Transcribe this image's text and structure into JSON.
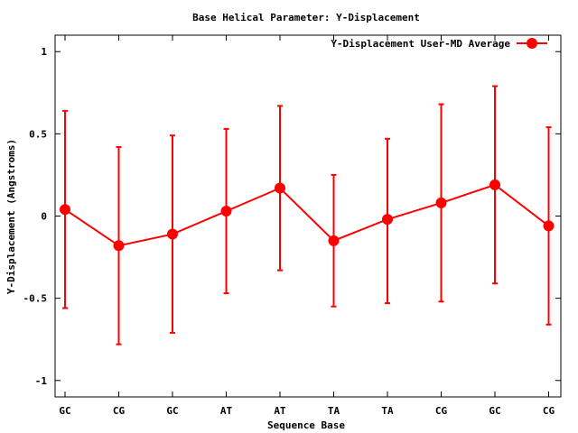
{
  "chart_data": {
    "type": "line",
    "title": "Base  Helical Parameter: Y-Displacement",
    "xlabel": "Sequence Base",
    "ylabel": "Y-Displacement (Angstroms)",
    "ylim": [
      -1.1,
      1.1
    ],
    "yticks": [
      -1,
      -0.5,
      0,
      0.5,
      1
    ],
    "ytick_labels": [
      "-1",
      "-0.5",
      "0",
      "0.5",
      "1"
    ],
    "categories": [
      "GC",
      "CG",
      "GC",
      "AT",
      "AT",
      "TA",
      "TA",
      "CG",
      "GC",
      "CG"
    ],
    "grid": false,
    "legend_position": "top-right",
    "series": [
      {
        "name": "Y-Displacement User-MD Average",
        "color": "#ff0000",
        "values": [
          0.04,
          -0.18,
          -0.11,
          0.03,
          0.17,
          -0.15,
          -0.02,
          0.08,
          0.19,
          -0.06
        ],
        "err_low": [
          -0.56,
          -0.78,
          -0.71,
          -0.47,
          -0.33,
          -0.55,
          -0.53,
          -0.52,
          -0.41,
          -0.66
        ],
        "err_high": [
          0.64,
          0.42,
          0.49,
          0.53,
          0.67,
          0.25,
          0.47,
          0.68,
          0.79,
          0.54
        ]
      }
    ]
  }
}
